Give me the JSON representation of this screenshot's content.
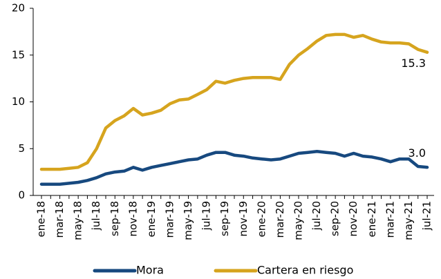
{
  "chart_data": {
    "type": "line",
    "categories": [
      "ene-18",
      null,
      "mar-18",
      null,
      "may-18",
      null,
      "jul-18",
      null,
      "sep-18",
      null,
      "nov-18",
      null,
      "ene-19",
      null,
      "mar-19",
      null,
      "may-19",
      null,
      "jul-19",
      null,
      "sep-19",
      null,
      "nov-19",
      null,
      "ene-20",
      null,
      "mar-20",
      null,
      "may-20",
      null,
      "jul-20",
      null,
      "sep-20",
      null,
      "nov-20",
      null,
      "ene-21",
      null,
      "mar-21",
      null,
      "may-21",
      null,
      "jul-21"
    ],
    "series": [
      {
        "name": "Mora",
        "color": "#17497f",
        "values": [
          1.2,
          1.2,
          1.2,
          1.3,
          1.4,
          1.6,
          1.9,
          2.3,
          2.5,
          2.6,
          3.0,
          2.7,
          3.0,
          3.2,
          3.4,
          3.6,
          3.8,
          3.9,
          4.3,
          4.6,
          4.6,
          4.3,
          4.2,
          4.0,
          3.9,
          3.8,
          3.9,
          4.2,
          4.5,
          4.6,
          4.7,
          4.6,
          4.5,
          4.2,
          4.5,
          4.2,
          4.1,
          3.9,
          3.6,
          3.9,
          3.9,
          3.1,
          3.0
        ],
        "value_labels": [
          null,
          null,
          null,
          null,
          null,
          null,
          null,
          null,
          null,
          null,
          null,
          null,
          null,
          null,
          null,
          null,
          null,
          null,
          null,
          null,
          null,
          null,
          null,
          null,
          null,
          null,
          null,
          null,
          null,
          null,
          null,
          null,
          null,
          null,
          null,
          null,
          null,
          null,
          null,
          null,
          null,
          null,
          "3.0"
        ]
      },
      {
        "name": "Cartera en riesgo",
        "color": "#d6a41e",
        "values": [
          2.8,
          2.8,
          2.8,
          2.9,
          3.0,
          3.5,
          5.0,
          7.2,
          8.0,
          8.5,
          9.3,
          8.6,
          8.8,
          9.1,
          9.8,
          10.2,
          10.3,
          10.8,
          11.3,
          12.2,
          12.0,
          12.3,
          12.5,
          12.6,
          12.6,
          12.6,
          12.4,
          14.0,
          15.0,
          15.7,
          16.5,
          17.1,
          17.2,
          17.2,
          16.9,
          17.1,
          16.7,
          16.4,
          16.3,
          16.3,
          16.2,
          15.6,
          15.3
        ],
        "value_labels": [
          null,
          null,
          null,
          null,
          null,
          null,
          null,
          null,
          null,
          null,
          null,
          null,
          null,
          null,
          null,
          null,
          null,
          null,
          null,
          null,
          null,
          null,
          null,
          null,
          null,
          null,
          null,
          null,
          null,
          null,
          null,
          null,
          null,
          null,
          null,
          null,
          null,
          null,
          null,
          null,
          null,
          null,
          "15.3"
        ]
      }
    ],
    "ylim": [
      0,
      20
    ],
    "yticks": [
      0,
      5,
      10,
      15,
      20
    ],
    "grid": false,
    "legend": "bottom"
  }
}
